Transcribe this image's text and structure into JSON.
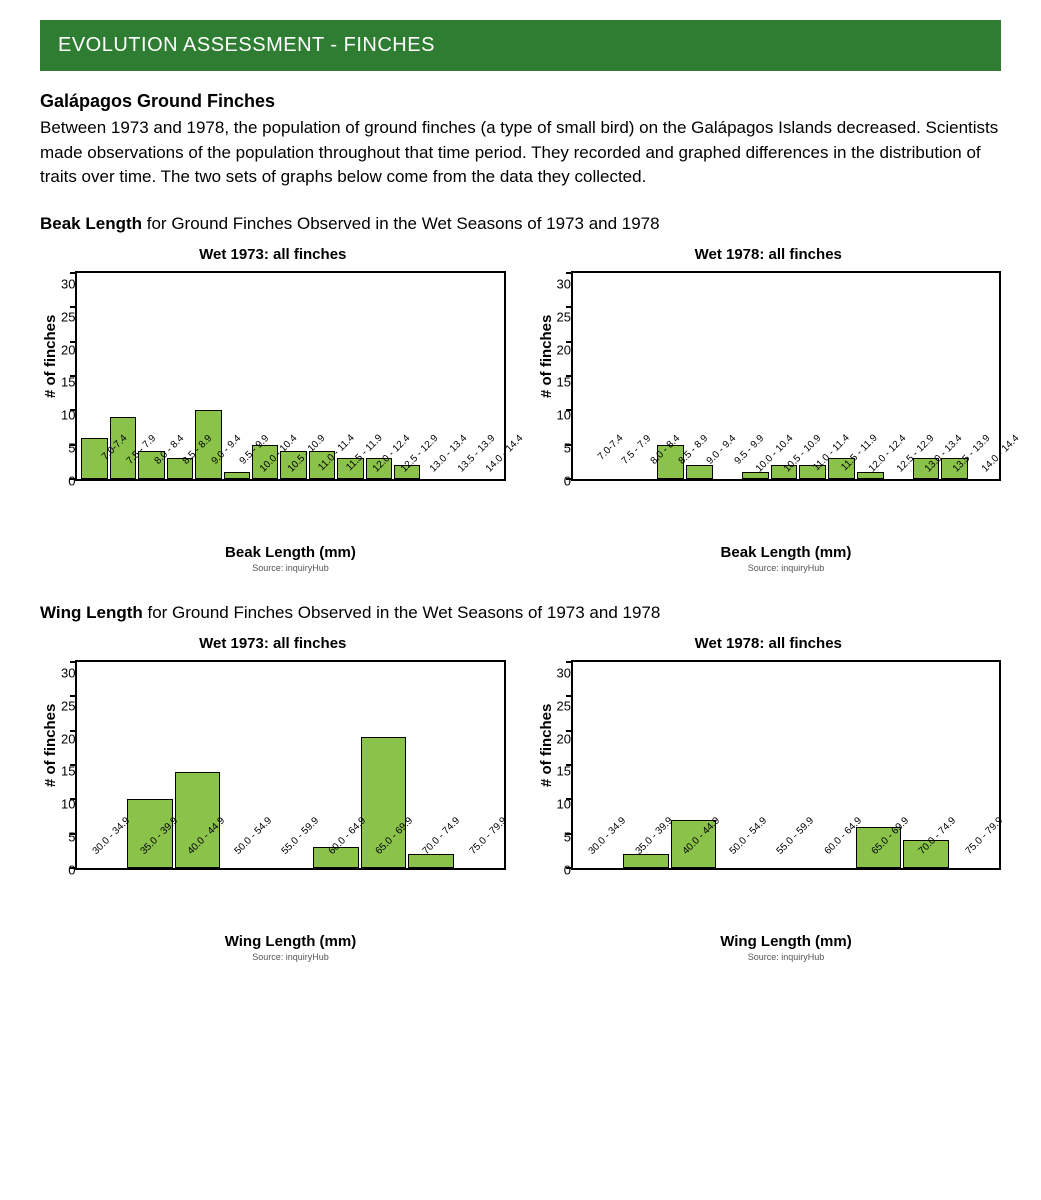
{
  "banner": "EVOLUTION ASSESSMENT - FINCHES",
  "subtitle": "Galápagos Ground Finches",
  "body": "Between 1973 and 1978, the population of ground finches (a type of small bird) on the Galápagos Islands decreased. Scientists made observations of the population throughout that time period. They recorded and graphed differences in the distribution of traits over time. The two sets of graphs below come from the data they collected.",
  "sections": {
    "beak": {
      "bold": "Beak Length",
      "rest": " for Ground Finches Observed in the Wet Seasons of 1973 and 1978"
    },
    "wing": {
      "bold": "Wing Length",
      "rest": " for Ground Finches Observed in the Wet Seasons of 1973 and 1978"
    }
  },
  "chart_styling": {
    "bar_color": "#8bc34a",
    "bar_border": "#000000",
    "axis_color": "#000000",
    "background": "#ffffff",
    "title_fontsize": 15,
    "y_label_fontsize": 15,
    "x_label_fontsize": 15,
    "tick_fontsize": 10,
    "y_tick_fontsize": 13,
    "source_fontsize": 9
  },
  "beak1973": {
    "type": "bar",
    "title": "Wet 1973: all finches",
    "y_label": "# of finches",
    "x_label": "Beak Length (mm)",
    "source": "Source: inquiryHub",
    "ylim": [
      0,
      30
    ],
    "ytick_step": 5,
    "categories": [
      "7.0-7.4",
      "7.5 - 7.9",
      "8.0 - 8.4",
      "8.5 - 8.9",
      "9.0 - 9.4",
      "9.5 - 9.9",
      "10.0 - 10.4",
      "10.5 - 10.9",
      "11.0 - 11.4",
      "11.5 - 11.9",
      "12.0 - 12.4",
      "12.5 - 12.9",
      "13.0 - 13.4",
      "13.5 - 13.9",
      "14.0 - 14.4"
    ],
    "values": [
      6,
      9,
      4,
      3,
      10,
      1,
      5,
      4,
      4,
      3,
      3,
      2,
      0,
      0,
      0
    ]
  },
  "beak1978": {
    "type": "bar",
    "title": "Wet 1978: all finches",
    "y_label": "# of finches",
    "x_label": "Beak Length (mm)",
    "source": "Source: inquiryHub",
    "ylim": [
      0,
      30
    ],
    "ytick_step": 5,
    "categories": [
      "7.0-7.4",
      "7.5 - 7.9",
      "8.0 - 8.4",
      "8.5 - 8.9",
      "9.0 - 9.4",
      "9.5 - 9.9",
      "10.0 - 10.4",
      "10.5 - 10.9",
      "11.0 - 11.4",
      "11.5 - 11.9",
      "12.0 - 12.4",
      "12.5 - 12.9",
      "13.0 - 13.4",
      "13.5 - 13.9",
      "14.0 - 14.4"
    ],
    "values": [
      0,
      0,
      0,
      5,
      2,
      0,
      1,
      2,
      2,
      3,
      1,
      0,
      3,
      3,
      0
    ]
  },
  "wing1973": {
    "type": "bar",
    "title": "Wet 1973: all finches",
    "y_label": "# of finches",
    "x_label": "Wing Length (mm)",
    "source": "Source: inquiryHub",
    "ylim": [
      0,
      30
    ],
    "ytick_step": 5,
    "categories": [
      "30.0 - 34.9",
      "35.0 - 39.9",
      "40.0 - 44.9",
      "50.0 - 54.9",
      "55.0 - 59.9",
      "60.0 - 64.9",
      "65.0 - 69.9",
      "70.0 - 74.9",
      "75.0 - 79.9"
    ],
    "values": [
      0,
      10,
      14,
      0,
      0,
      3,
      19,
      2,
      0
    ]
  },
  "wing1978": {
    "type": "bar",
    "title": "Wet 1978: all finches",
    "y_label": "# of finches",
    "x_label": "Wing Length (mm)",
    "source": "Source: inquiryHub",
    "ylim": [
      0,
      30
    ],
    "ytick_step": 5,
    "categories": [
      "30.0 - 34.9",
      "35.0 - 39.9",
      "40.0 - 44.9",
      "50.0 - 54.9",
      "55.0 - 59.9",
      "60.0 - 64.9",
      "65.0 - 69.9",
      "70.0 - 74.9",
      "75.0 - 79.9"
    ],
    "values": [
      0,
      2,
      7,
      0,
      0,
      0,
      6,
      4,
      0
    ]
  }
}
